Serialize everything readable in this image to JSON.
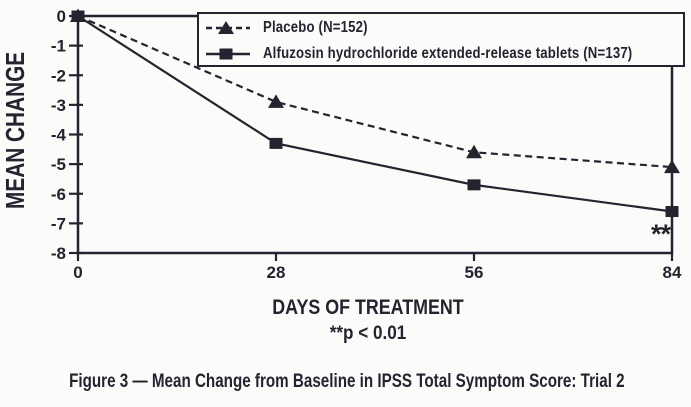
{
  "figure": {
    "caption": "Figure 3 — Mean Change from Baseline in IPSS Total Symptom Score: Trial 2"
  },
  "colors": {
    "ink": "#262330",
    "background": "#fbfbf9"
  },
  "chart_data": {
    "type": "line",
    "x": [
      0,
      28,
      56,
      84
    ],
    "x_tick_labels": [
      "0",
      "28",
      "56",
      "84"
    ],
    "y_ticks": [
      0,
      -1,
      -2,
      -3,
      -4,
      -5,
      -6,
      -7,
      -8
    ],
    "xlim": [
      0,
      84
    ],
    "ylim": [
      -8,
      0
    ],
    "xlabel": "DAYS OF TREATMENT",
    "ylabel": "MEAN CHANGE",
    "footnote": "**p < 0.01",
    "grid": false,
    "legend_position": "inside top-right",
    "annotation": {
      "text": "**",
      "x": 82,
      "y": -7.4
    },
    "series": [
      {
        "name": "Placebo (N=152)",
        "marker": "triangle",
        "line_style": "dashed",
        "values": [
          0,
          -2.9,
          -4.6,
          -5.1
        ]
      },
      {
        "name": "Alfuzosin hydrochloride extended-release tablets (N=137)",
        "marker": "square",
        "line_style": "solid",
        "values": [
          0,
          -4.3,
          -5.7,
          -6.6
        ]
      }
    ]
  }
}
